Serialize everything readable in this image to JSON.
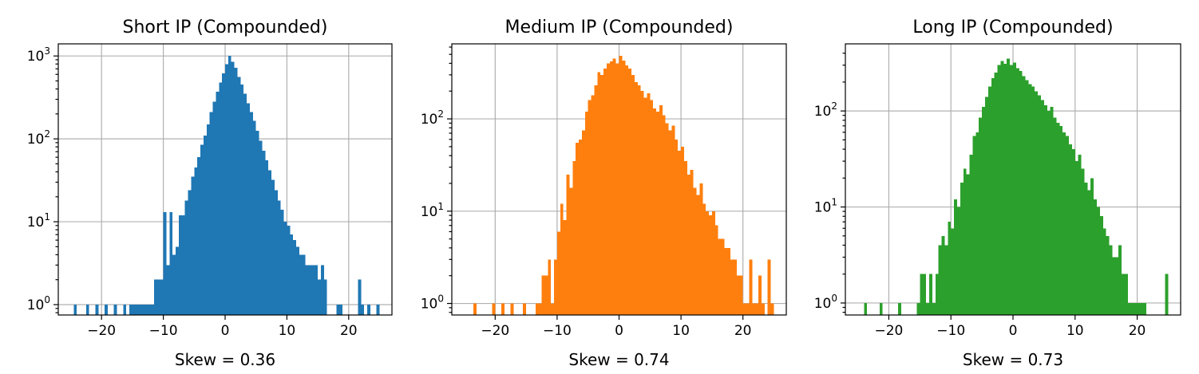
{
  "chart_data": [
    {
      "type": "bar",
      "subtype": "histogram",
      "title": "Short IP (Compounded)",
      "xlabel": "Skew = 0.36",
      "ylabel": "",
      "yscale": "log",
      "xlim": [
        -27,
        27
      ],
      "ylim": [
        0.75,
        1400
      ],
      "xticks": [
        -20,
        -10,
        0,
        10,
        20
      ],
      "xtick_labels": [
        "−20",
        "−10",
        "0",
        "10",
        "20"
      ],
      "yticks": [
        1,
        10,
        100,
        1000
      ],
      "ytick_labels": [
        {
          "base": "10",
          "exp": "0"
        },
        {
          "base": "10",
          "exp": "1"
        },
        {
          "base": "10",
          "exp": "2"
        },
        {
          "base": "10",
          "exp": "3"
        }
      ],
      "grid": true,
      "color": "#1f77b4",
      "bin_width": 0.5,
      "bins": [
        [
          -24.5,
          1
        ],
        [
          -22.5,
          1
        ],
        [
          -21,
          1
        ],
        [
          -19.5,
          1
        ],
        [
          -18,
          1
        ],
        [
          -16.5,
          1
        ],
        [
          -15.5,
          1
        ],
        [
          -15,
          1
        ],
        [
          -14.5,
          1
        ],
        [
          -14,
          1
        ],
        [
          -13.5,
          1
        ],
        [
          -13,
          1
        ],
        [
          -12.5,
          1
        ],
        [
          -12,
          1
        ],
        [
          -11.5,
          2
        ],
        [
          -11,
          2
        ],
        [
          -10.5,
          2
        ],
        [
          -10,
          13
        ],
        [
          -9.5,
          3
        ],
        [
          -9,
          13
        ],
        [
          -8.5,
          4
        ],
        [
          -8,
          5
        ],
        [
          -7.5,
          12
        ],
        [
          -7,
          12
        ],
        [
          -6.5,
          18
        ],
        [
          -6,
          24
        ],
        [
          -5.5,
          35
        ],
        [
          -5,
          45
        ],
        [
          -4.5,
          60
        ],
        [
          -4,
          85
        ],
        [
          -3.5,
          110
        ],
        [
          -3,
          150
        ],
        [
          -2.5,
          210
        ],
        [
          -2,
          280
        ],
        [
          -1.5,
          370
        ],
        [
          -1,
          480
        ],
        [
          -0.5,
          620
        ],
        [
          0,
          800
        ],
        [
          0.5,
          1000
        ],
        [
          1,
          850
        ],
        [
          1.5,
          720
        ],
        [
          2,
          560
        ],
        [
          2.5,
          450
        ],
        [
          3,
          350
        ],
        [
          3.5,
          270
        ],
        [
          4,
          210
        ],
        [
          4.5,
          165
        ],
        [
          5,
          125
        ],
        [
          5.5,
          95
        ],
        [
          6,
          72
        ],
        [
          6.5,
          55
        ],
        [
          7,
          42
        ],
        [
          7.5,
          32
        ],
        [
          8,
          24
        ],
        [
          8.5,
          18
        ],
        [
          9,
          14
        ],
        [
          9.5,
          10
        ],
        [
          10,
          9
        ],
        [
          10.5,
          7
        ],
        [
          11,
          6
        ],
        [
          11.5,
          5
        ],
        [
          12,
          4
        ],
        [
          12.5,
          4
        ],
        [
          13,
          3
        ],
        [
          13.5,
          3
        ],
        [
          14,
          3
        ],
        [
          14.5,
          3
        ],
        [
          15,
          2
        ],
        [
          15.5,
          3
        ],
        [
          16,
          2
        ],
        [
          18,
          1
        ],
        [
          18.5,
          1
        ],
        [
          21.5,
          2
        ],
        [
          22,
          1
        ],
        [
          23,
          1
        ],
        [
          24.5,
          1
        ]
      ]
    },
    {
      "type": "bar",
      "subtype": "histogram",
      "title": "Medium IP (Compounded)",
      "xlabel": "Skew = 0.74",
      "ylabel": "",
      "yscale": "log",
      "xlim": [
        -27,
        27
      ],
      "ylim": [
        0.75,
        650
      ],
      "xticks": [
        -20,
        -10,
        0,
        10,
        20
      ],
      "xtick_labels": [
        "−20",
        "−10",
        "0",
        "10",
        "20"
      ],
      "yticks": [
        1,
        10,
        100
      ],
      "ytick_labels": [
        {
          "base": "10",
          "exp": "0"
        },
        {
          "base": "10",
          "exp": "1"
        },
        {
          "base": "10",
          "exp": "2"
        }
      ],
      "grid": true,
      "color": "#ff7f0e",
      "bin_width": 0.5,
      "bins": [
        [
          -23.5,
          1
        ],
        [
          -20.5,
          1
        ],
        [
          -19,
          1
        ],
        [
          -17.5,
          1
        ],
        [
          -15.5,
          1
        ],
        [
          -13.5,
          1
        ],
        [
          -13,
          1
        ],
        [
          -12.5,
          2
        ],
        [
          -12,
          2
        ],
        [
          -11.5,
          3
        ],
        [
          -11,
          1
        ],
        [
          -10.5,
          3
        ],
        [
          -10,
          6
        ],
        [
          -9.5,
          12
        ],
        [
          -9,
          8
        ],
        [
          -8.5,
          25
        ],
        [
          -8,
          18
        ],
        [
          -7.5,
          35
        ],
        [
          -7,
          55
        ],
        [
          -6.5,
          60
        ],
        [
          -6,
          75
        ],
        [
          -5.5,
          120
        ],
        [
          -5,
          160
        ],
        [
          -4.5,
          180
        ],
        [
          -4,
          230
        ],
        [
          -3.5,
          320
        ],
        [
          -3,
          300
        ],
        [
          -2.5,
          350
        ],
        [
          -2,
          400
        ],
        [
          -1.5,
          420
        ],
        [
          -1,
          450
        ],
        [
          -0.5,
          400
        ],
        [
          0,
          480
        ],
        [
          0.5,
          430
        ],
        [
          1,
          380
        ],
        [
          1.5,
          350
        ],
        [
          2,
          300
        ],
        [
          2.5,
          250
        ],
        [
          3,
          230
        ],
        [
          3.5,
          200
        ],
        [
          4,
          170
        ],
        [
          4.5,
          190
        ],
        [
          5,
          160
        ],
        [
          5.5,
          130
        ],
        [
          6,
          120
        ],
        [
          6.5,
          140
        ],
        [
          7,
          110
        ],
        [
          7.5,
          90
        ],
        [
          8,
          75
        ],
        [
          8.5,
          85
        ],
        [
          9,
          60
        ],
        [
          9.5,
          45
        ],
        [
          10,
          50
        ],
        [
          10.5,
          35
        ],
        [
          11,
          25
        ],
        [
          11.5,
          28
        ],
        [
          12,
          18
        ],
        [
          12.5,
          15
        ],
        [
          13,
          20
        ],
        [
          13.5,
          12
        ],
        [
          14,
          10
        ],
        [
          14.5,
          9
        ],
        [
          15,
          10
        ],
        [
          15.5,
          7
        ],
        [
          16,
          5
        ],
        [
          16.5,
          5
        ],
        [
          17,
          4
        ],
        [
          17.5,
          4
        ],
        [
          18,
          3
        ],
        [
          18.5,
          3
        ],
        [
          19,
          2
        ],
        [
          19.5,
          2
        ],
        [
          20,
          1
        ],
        [
          20.5,
          1
        ],
        [
          21,
          3
        ],
        [
          21.5,
          1
        ],
        [
          22,
          1
        ],
        [
          22.5,
          2
        ],
        [
          23,
          1
        ],
        [
          24,
          3
        ],
        [
          24.5,
          1
        ]
      ]
    },
    {
      "type": "bar",
      "subtype": "histogram",
      "title": "Long IP (Compounded)",
      "xlabel": "Skew = 0.73",
      "ylabel": "",
      "yscale": "log",
      "xlim": [
        -27,
        27
      ],
      "ylim": [
        0.75,
        500
      ],
      "xticks": [
        -20,
        -10,
        0,
        10,
        20
      ],
      "xtick_labels": [
        "−20",
        "−10",
        "0",
        "10",
        "20"
      ],
      "yticks": [
        1,
        10,
        100
      ],
      "ytick_labels": [
        {
          "base": "10",
          "exp": "0"
        },
        {
          "base": "10",
          "exp": "1"
        },
        {
          "base": "10",
          "exp": "2"
        }
      ],
      "grid": true,
      "color": "#2ca02c",
      "bin_width": 0.5,
      "bins": [
        [
          -24,
          1
        ],
        [
          -21.5,
          1
        ],
        [
          -18.5,
          1
        ],
        [
          -15.5,
          1
        ],
        [
          -15,
          2
        ],
        [
          -14.5,
          2
        ],
        [
          -14,
          1
        ],
        [
          -13.5,
          2
        ],
        [
          -13,
          1
        ],
        [
          -12.5,
          2
        ],
        [
          -12,
          4
        ],
        [
          -11.5,
          5
        ],
        [
          -11,
          4
        ],
        [
          -10.5,
          7
        ],
        [
          -10,
          6
        ],
        [
          -9.5,
          12
        ],
        [
          -9,
          10
        ],
        [
          -8.5,
          18
        ],
        [
          -8,
          25
        ],
        [
          -7.5,
          22
        ],
        [
          -7,
          35
        ],
        [
          -6.5,
          55
        ],
        [
          -6,
          60
        ],
        [
          -5.5,
          85
        ],
        [
          -5,
          110
        ],
        [
          -4.5,
          140
        ],
        [
          -4,
          180
        ],
        [
          -3.5,
          220
        ],
        [
          -3,
          250
        ],
        [
          -2.5,
          300
        ],
        [
          -2,
          330
        ],
        [
          -1.5,
          310
        ],
        [
          -1,
          350
        ],
        [
          -0.5,
          300
        ],
        [
          0,
          320
        ],
        [
          0.5,
          280
        ],
        [
          1,
          260
        ],
        [
          1.5,
          230
        ],
        [
          2,
          210
        ],
        [
          2.5,
          190
        ],
        [
          3,
          180
        ],
        [
          3.5,
          160
        ],
        [
          4,
          145
        ],
        [
          4.5,
          130
        ],
        [
          5,
          115
        ],
        [
          5.5,
          100
        ],
        [
          6,
          110
        ],
        [
          6.5,
          85
        ],
        [
          7,
          75
        ],
        [
          7.5,
          70
        ],
        [
          8,
          60
        ],
        [
          8.5,
          55
        ],
        [
          9,
          45
        ],
        [
          9.5,
          40
        ],
        [
          10,
          30
        ],
        [
          10.5,
          35
        ],
        [
          11,
          25
        ],
        [
          11.5,
          18
        ],
        [
          12,
          15
        ],
        [
          12.5,
          20
        ],
        [
          13,
          12
        ],
        [
          13.5,
          10
        ],
        [
          14,
          8
        ],
        [
          14.5,
          6
        ],
        [
          15,
          5
        ],
        [
          15.5,
          4
        ],
        [
          16,
          3
        ],
        [
          16.5,
          3
        ],
        [
          17,
          4
        ],
        [
          17.5,
          2
        ],
        [
          18,
          2
        ],
        [
          18.5,
          1
        ],
        [
          19,
          1
        ],
        [
          19.5,
          1
        ],
        [
          20,
          1
        ],
        [
          20.5,
          1
        ],
        [
          21,
          1
        ],
        [
          24.5,
          2
        ]
      ]
    }
  ]
}
